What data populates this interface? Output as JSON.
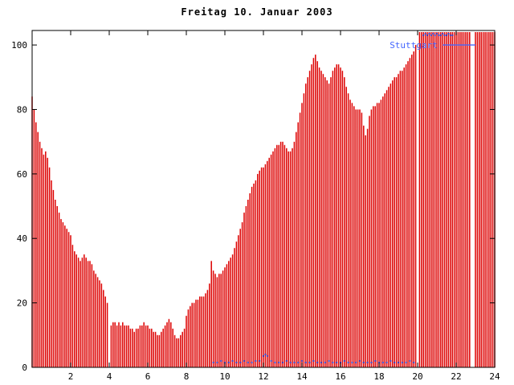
{
  "chart_data": {
    "type": "bar",
    "title": "Freitag 10. Januar 2003",
    "xlabel": "",
    "ylabel": "",
    "xlim": [
      0,
      24
    ],
    "ylim": [
      0,
      104.5
    ],
    "xticks": [
      2,
      4,
      6,
      8,
      10,
      12,
      14,
      16,
      18,
      20,
      22,
      24
    ],
    "yticks": [
      0,
      20,
      40,
      60,
      80,
      100
    ],
    "grid": "off",
    "legend": {
      "label": "Stuttgart",
      "color": "#4466ff",
      "position": "top-right",
      "text_x": 18.55,
      "text_y": 100,
      "line_x1": 21.3,
      "line_x2": 23.0
    },
    "colors": {
      "bars": "#dd0000",
      "points": "#3333bb",
      "axis": "#000000"
    },
    "series": [
      {
        "name": "bars",
        "type": "impulses",
        "color": "#dd0000",
        "x_start": 0,
        "x_step": 0.1,
        "values": [
          84,
          80,
          76,
          73,
          70,
          68,
          66,
          67,
          65,
          62,
          58,
          55,
          52,
          50,
          48,
          46,
          45,
          44,
          43,
          42,
          41,
          38,
          36,
          35,
          34,
          33,
          34,
          35,
          34,
          33,
          33,
          32,
          30,
          29,
          28,
          27,
          26,
          24,
          22,
          20,
          null,
          13,
          14,
          14,
          13,
          14,
          13,
          14,
          13,
          13,
          13,
          12,
          12,
          11,
          12,
          12,
          13,
          13,
          14,
          13,
          13,
          12,
          12,
          11,
          11,
          10,
          10,
          11,
          12,
          13,
          14,
          15,
          14,
          12,
          10,
          9,
          9,
          10,
          11,
          12,
          16,
          18,
          19,
          20,
          20,
          21,
          21,
          22,
          22,
          22,
          23,
          24,
          26,
          33,
          30,
          29,
          28,
          29,
          29,
          30,
          31,
          32,
          33,
          34,
          35,
          37,
          39,
          41,
          43,
          45,
          48,
          50,
          52,
          54,
          56,
          57,
          58,
          60,
          61,
          62,
          62,
          63,
          64,
          65,
          66,
          67,
          68,
          69,
          69,
          70,
          70,
          69,
          68,
          67,
          67,
          68,
          70,
          73,
          76,
          79,
          82,
          85,
          88,
          90,
          92,
          94,
          96,
          97,
          95,
          93,
          92,
          91,
          90,
          89,
          88,
          90,
          92,
          93,
          94,
          94,
          93,
          92,
          90,
          87,
          85,
          83,
          82,
          81,
          80,
          80,
          80,
          79,
          75,
          72,
          74,
          78,
          80,
          81,
          81,
          82,
          82,
          83,
          84,
          85,
          86,
          87,
          88,
          89,
          90,
          90,
          91,
          92,
          92,
          93,
          94,
          95,
          96,
          97,
          98,
          100,
          null,
          104,
          104,
          104,
          104,
          104,
          104,
          104,
          104,
          104,
          104,
          104,
          104,
          104,
          104,
          104,
          104,
          104,
          104,
          104,
          104,
          104,
          104,
          104,
          104,
          104,
          104,
          104,
          null,
          null,
          104,
          104,
          104,
          104,
          104,
          104,
          104,
          104,
          104,
          104,
          104
        ]
      },
      {
        "name": "stuttgart",
        "type": "points",
        "color": "#3333bb",
        "points": [
          [
            9.4,
            1.5
          ],
          [
            9.6,
            1.5
          ],
          [
            9.8,
            2
          ],
          [
            10,
            1.5
          ],
          [
            10.2,
            1.5
          ],
          [
            10.4,
            2
          ],
          [
            10.6,
            1.5
          ],
          [
            10.8,
            1.5
          ],
          [
            11,
            2
          ],
          [
            11.2,
            1.5
          ],
          [
            11.4,
            1.5
          ],
          [
            11.6,
            2
          ],
          [
            11.8,
            2
          ],
          [
            12,
            3.5
          ],
          [
            12.1,
            4
          ],
          [
            12.2,
            3.5
          ],
          [
            12.4,
            2
          ],
          [
            12.6,
            1.5
          ],
          [
            12.8,
            1.5
          ],
          [
            13,
            1.5
          ],
          [
            13.2,
            2
          ],
          [
            13.4,
            1.5
          ],
          [
            13.6,
            1.5
          ],
          [
            13.8,
            1.5
          ],
          [
            14,
            2
          ],
          [
            14.2,
            1.5
          ],
          [
            14.4,
            1.5
          ],
          [
            14.6,
            2
          ],
          [
            14.8,
            1.5
          ],
          [
            15,
            1.5
          ],
          [
            15.2,
            1.5
          ],
          [
            15.4,
            2
          ],
          [
            15.6,
            1.5
          ],
          [
            15.8,
            1.5
          ],
          [
            16,
            1.5
          ],
          [
            16.2,
            2
          ],
          [
            16.4,
            1.5
          ],
          [
            16.6,
            1.5
          ],
          [
            16.8,
            1.5
          ],
          [
            17,
            2
          ],
          [
            17.2,
            1.5
          ],
          [
            17.4,
            1.5
          ],
          [
            17.6,
            1.5
          ],
          [
            17.8,
            2
          ],
          [
            18,
            1.5
          ],
          [
            18.2,
            1.5
          ],
          [
            18.4,
            1.5
          ],
          [
            18.6,
            2
          ],
          [
            18.8,
            1.5
          ],
          [
            19,
            1.5
          ],
          [
            19.2,
            1.5
          ],
          [
            19.4,
            1.5
          ],
          [
            19.6,
            2
          ],
          [
            19.8,
            1.5
          ],
          [
            20.3,
            103
          ],
          [
            20.4,
            103.5
          ],
          [
            20.5,
            103
          ],
          [
            20.6,
            103.5
          ],
          [
            20.7,
            103
          ],
          [
            20.8,
            103.5
          ],
          [
            20.9,
            103
          ],
          [
            21.0,
            103.5
          ],
          [
            21.1,
            103
          ],
          [
            21.2,
            103
          ],
          [
            21.3,
            103.5
          ],
          [
            21.4,
            103
          ],
          [
            21.5,
            103
          ],
          [
            21.6,
            103.5
          ],
          [
            21.7,
            103
          ],
          [
            21.8,
            103
          ]
        ]
      }
    ]
  }
}
